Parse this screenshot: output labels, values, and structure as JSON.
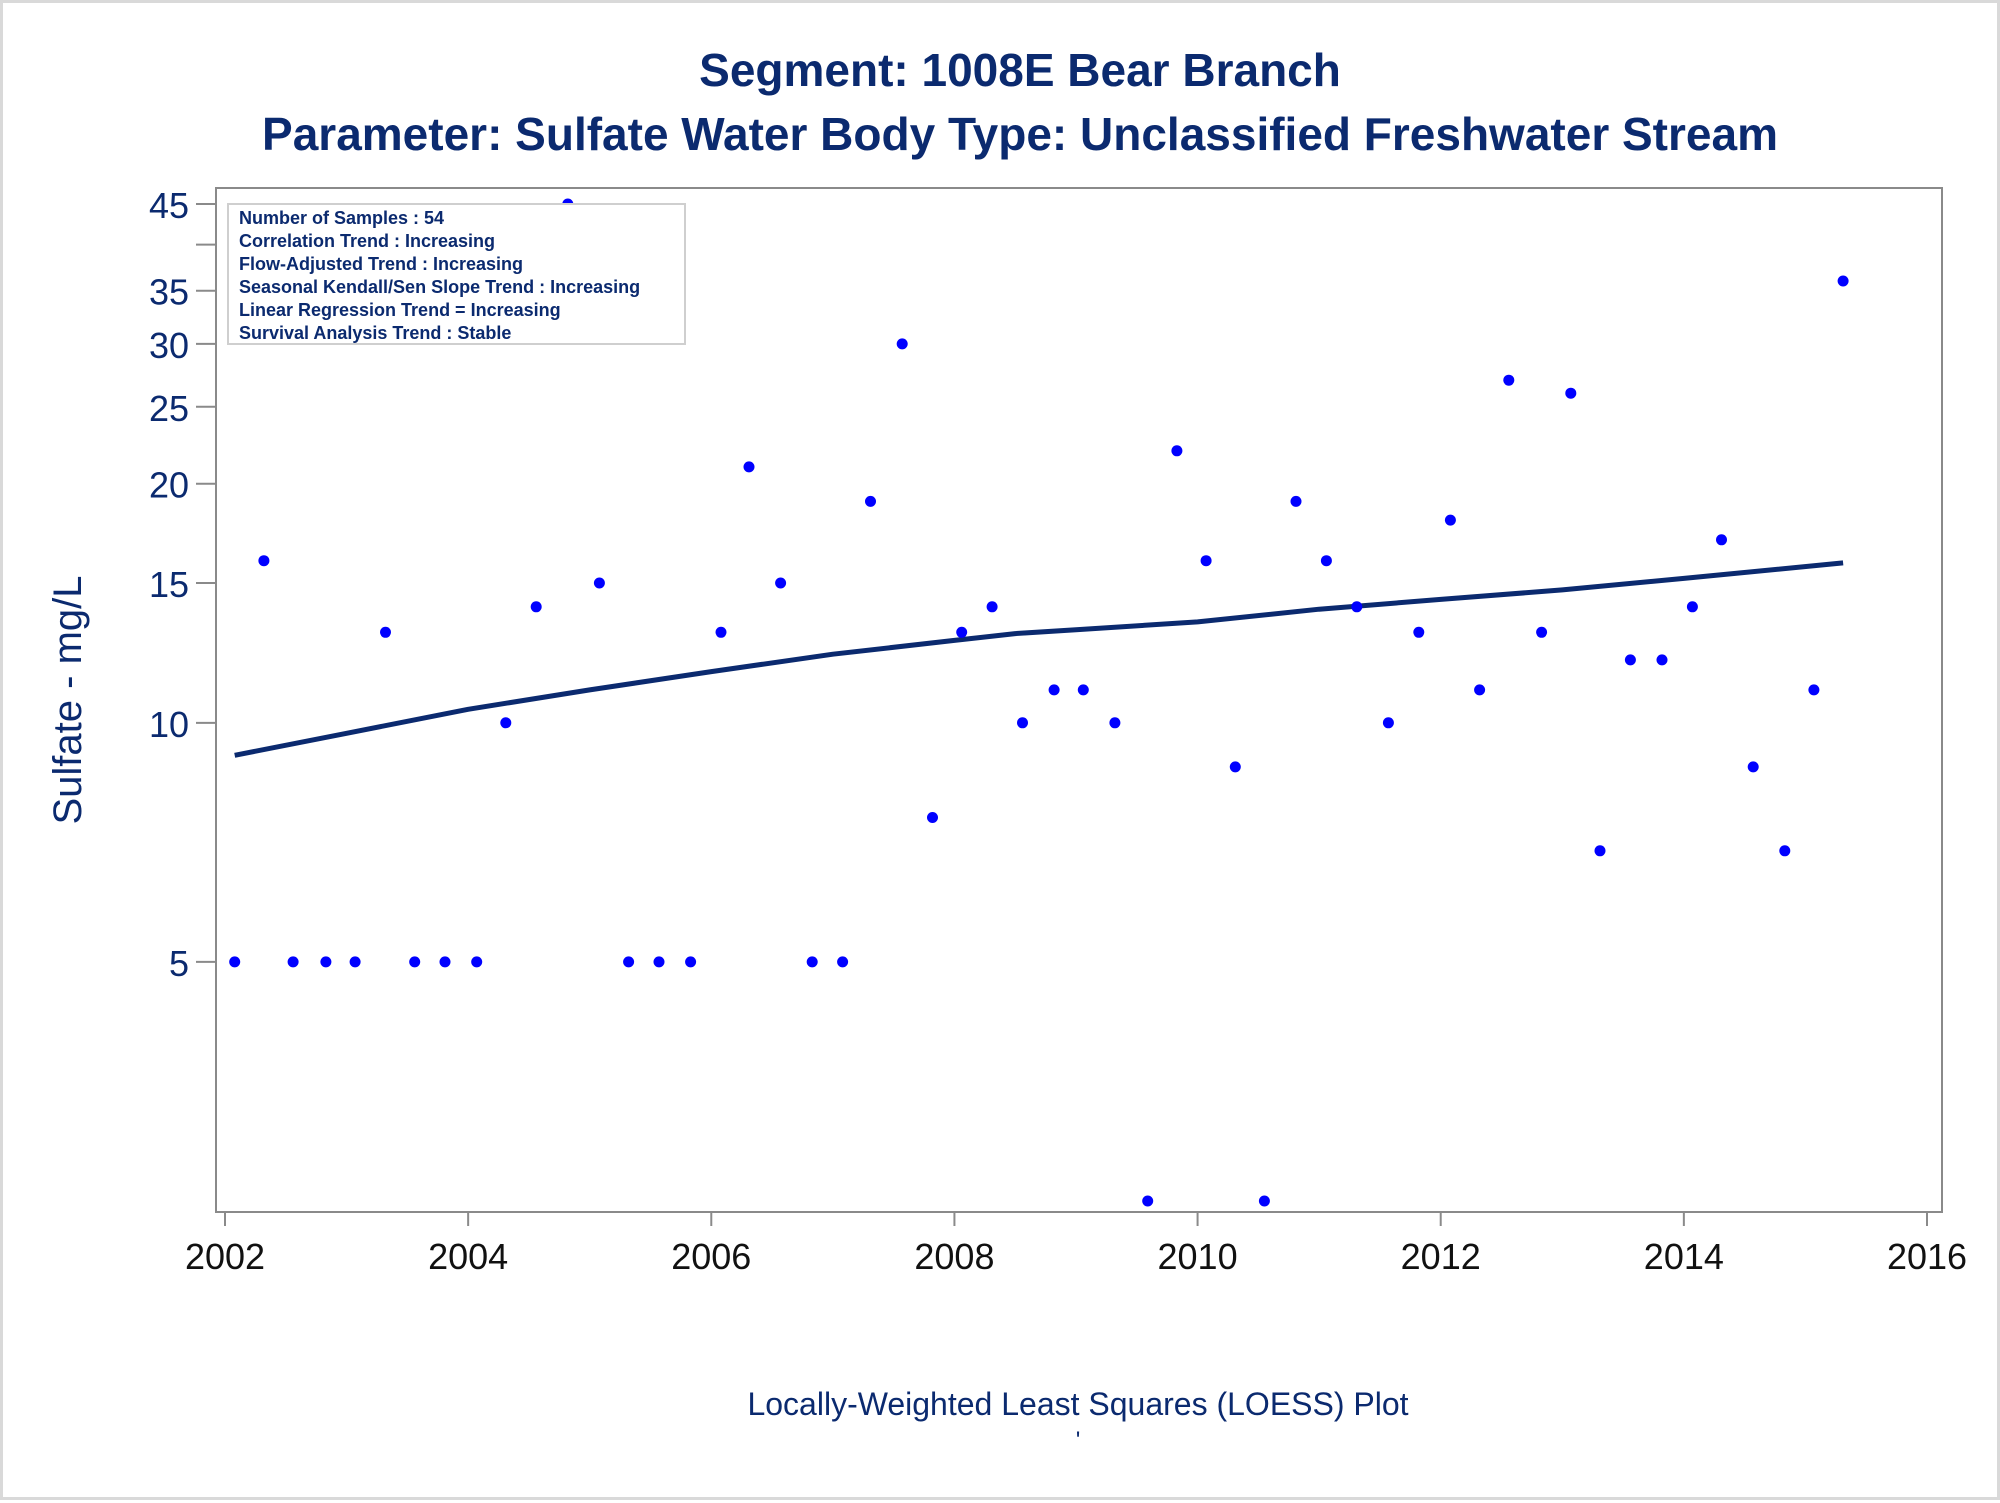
{
  "chart_data": {
    "type": "scatter",
    "title": "Segment: 1008E  Bear Branch",
    "subtitle": "Parameter: Sulfate   Water Body Type: Unclassified Freshwater Stream",
    "xlabel": "Locally-Weighted Least Squares (LOESS) Plot",
    "ylabel": "Sulfate - mg/L",
    "footnote": "'",
    "xlim": [
      2002,
      2016
    ],
    "ylim": [
      2.5,
      45
    ],
    "yscale": "log",
    "x_ticks": [
      "2002",
      "2004",
      "2006",
      "2008",
      "2010",
      "2012",
      "2014",
      "2016"
    ],
    "y_ticks": [
      "5",
      "10",
      "15",
      "20",
      "25",
      "30",
      "35",
      "45"
    ],
    "y_tick_values": [
      5,
      10,
      15,
      20,
      25,
      30,
      35,
      45
    ],
    "y_minor_ticks": [
      40
    ],
    "grid": false,
    "info_box": {
      "position": "top-left",
      "lines": [
        "Number of Samples : 54",
        "Correlation Trend : Increasing",
        "Flow-Adjusted Trend : Increasing",
        "Seasonal Kendall/Sen Slope Trend : Increasing",
        "Linear Regression Trend = Increasing",
        "Survival Analysis Trend : Stable"
      ]
    },
    "colors": {
      "points": "#0000ff",
      "trend_line": "#0b2a6f",
      "text": "#0b2a6f",
      "axis": "#8a8a8a"
    },
    "series": [
      {
        "type": "scatter",
        "points": [
          [
            2002.08,
            5
          ],
          [
            2002.32,
            16
          ],
          [
            2002.56,
            5
          ],
          [
            2002.83,
            5
          ],
          [
            2003.07,
            5
          ],
          [
            2003.32,
            13
          ],
          [
            2003.56,
            5
          ],
          [
            2003.81,
            5
          ],
          [
            2004.07,
            5
          ],
          [
            2004.31,
            10
          ],
          [
            2004.56,
            14
          ],
          [
            2004.82,
            45
          ],
          [
            2005.08,
            15
          ],
          [
            2005.32,
            5
          ],
          [
            2005.57,
            5
          ],
          [
            2005.83,
            5
          ],
          [
            2006.08,
            13
          ],
          [
            2006.31,
            21
          ],
          [
            2006.57,
            15
          ],
          [
            2006.83,
            5
          ],
          [
            2007.08,
            5
          ],
          [
            2007.31,
            19
          ],
          [
            2007.57,
            30
          ],
          [
            2007.82,
            7.6
          ],
          [
            2008.06,
            13
          ],
          [
            2008.31,
            14
          ],
          [
            2008.56,
            10
          ],
          [
            2008.82,
            11
          ],
          [
            2009.06,
            11
          ],
          [
            2009.32,
            10
          ],
          [
            2009.59,
            2.5
          ],
          [
            2009.83,
            22
          ],
          [
            2010.07,
            16
          ],
          [
            2010.31,
            8.8
          ],
          [
            2010.55,
            2.5
          ],
          [
            2010.81,
            19
          ],
          [
            2011.06,
            16
          ],
          [
            2011.31,
            14
          ],
          [
            2011.57,
            10
          ],
          [
            2011.82,
            13
          ],
          [
            2012.08,
            18
          ],
          [
            2012.32,
            11
          ],
          [
            2012.56,
            27
          ],
          [
            2012.83,
            13
          ],
          [
            2013.07,
            26
          ],
          [
            2013.31,
            6.9
          ],
          [
            2013.56,
            12
          ],
          [
            2013.82,
            12
          ],
          [
            2014.07,
            14
          ],
          [
            2014.31,
            17
          ],
          [
            2014.57,
            8.8
          ],
          [
            2014.83,
            6.9
          ],
          [
            2015.07,
            11
          ],
          [
            2015.31,
            36
          ]
        ]
      },
      {
        "type": "line",
        "points": [
          [
            2002.08,
            9.1
          ],
          [
            2003.0,
            9.7
          ],
          [
            2004.0,
            10.4
          ],
          [
            2005.0,
            11.0
          ],
          [
            2006.0,
            11.6
          ],
          [
            2007.0,
            12.2
          ],
          [
            2008.0,
            12.7
          ],
          [
            2008.5,
            12.95
          ],
          [
            2009.0,
            13.1
          ],
          [
            2010.0,
            13.4
          ],
          [
            2011.0,
            13.9
          ],
          [
            2012.0,
            14.3
          ],
          [
            2013.0,
            14.7
          ],
          [
            2014.0,
            15.2
          ],
          [
            2015.31,
            15.9
          ]
        ]
      }
    ]
  }
}
